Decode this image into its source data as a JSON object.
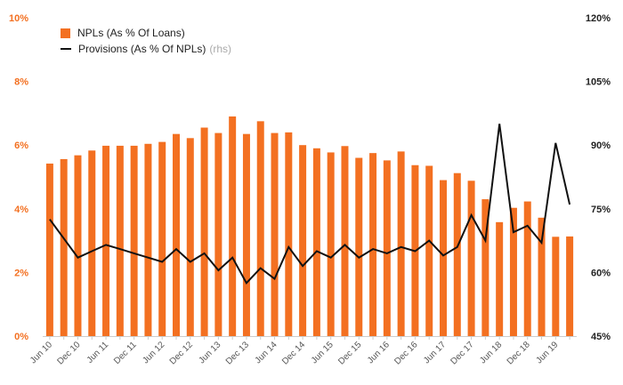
{
  "colors": {
    "bar": "#F37021",
    "line": "#111111",
    "left_axis_text": "#F37021",
    "right_axis_text": "#222222",
    "tick": "#cccccc",
    "x_label": "#555555"
  },
  "legend": {
    "bar_label": "NPLs (As % Of Loans)",
    "line_label": "Provisions (As % Of NPLs)",
    "rhs_tag": "(rhs)"
  },
  "chart_data": {
    "type": "bar",
    "title": "",
    "xlabel": "",
    "ylabel": "",
    "ylim": [
      0,
      10
    ],
    "y2lim": [
      45,
      120
    ],
    "y_ticks": [
      "0%",
      "2%",
      "4%",
      "6%",
      "8%",
      "10%"
    ],
    "y2_ticks": [
      "45%",
      "60%",
      "75%",
      "90%",
      "105%",
      "120%"
    ],
    "x_tick_labels": [
      "Jun 10",
      "Dec 10",
      "Jun 11",
      "Dec 11",
      "Jun 12",
      "Dec 12",
      "Jun 13",
      "Dec 13",
      "Jun 14",
      "Dec 14",
      "Jun 15",
      "Dec 15",
      "Jun 16",
      "Dec 16",
      "Jun 17",
      "Dec 17",
      "Jun 18",
      "Dec 18",
      "Jun 19"
    ],
    "series": [
      {
        "name": "NPLs (As % Of Loans)",
        "type": "bar",
        "axis": "left",
        "values": [
          5.42,
          5.56,
          5.68,
          5.83,
          5.98,
          5.98,
          5.98,
          6.04,
          6.1,
          6.35,
          6.22,
          6.55,
          6.38,
          6.9,
          6.35,
          6.75,
          6.38,
          6.4,
          6.0,
          5.9,
          5.77,
          5.97,
          5.6,
          5.75,
          5.52,
          5.8,
          5.37,
          5.35,
          4.9,
          5.12,
          4.88,
          4.3,
          3.58,
          4.03,
          4.23,
          3.72,
          3.12,
          3.13
        ]
      },
      {
        "name": "Provisions (As % Of NPLs)",
        "type": "line",
        "axis": "right",
        "values": [
          72.5,
          68.0,
          63.5,
          65.0,
          66.5,
          65.5,
          64.5,
          63.5,
          62.5,
          65.5,
          62.5,
          64.5,
          60.5,
          63.5,
          57.5,
          61.0,
          58.5,
          66.0,
          61.5,
          65.0,
          63.5,
          66.5,
          63.5,
          65.5,
          64.5,
          66.0,
          65.0,
          67.5,
          64.0,
          66.0,
          73.5,
          67.5,
          95.0,
          69.5,
          71.0,
          67.0,
          90.5,
          76.0
        ]
      }
    ]
  }
}
